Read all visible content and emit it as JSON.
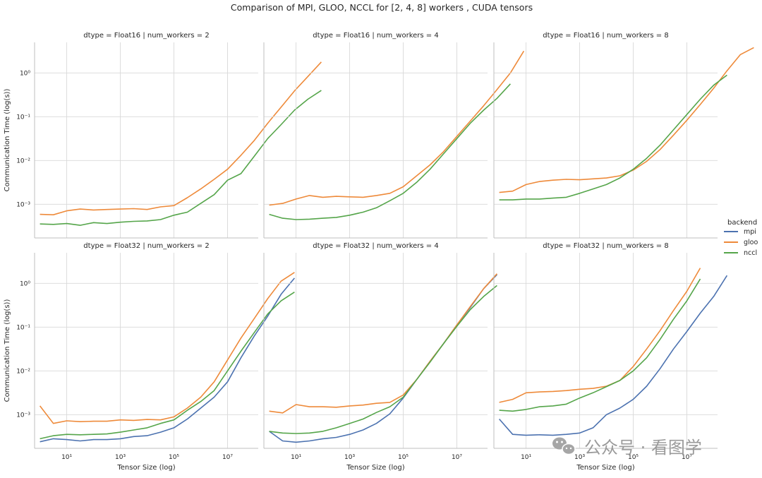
{
  "figure": {
    "title": "Comparison of MPI, GLOO, NCCL for [2, 4, 8] workers , CUDA tensors",
    "xlabel": "Tensor Size (log)",
    "ylabel": "Communication Time (log(s))",
    "legend_title": "backend"
  },
  "watermark": {
    "text": "公众号 · 看图学"
  },
  "backends": [
    {
      "name": "mpi",
      "color": "#4c72b0"
    },
    {
      "name": "gloo",
      "color": "#ee8a3a"
    },
    {
      "name": "nccl",
      "color": "#55a54a"
    }
  ],
  "chart_data": [
    {
      "type": "line",
      "title": "dtype = Float16 | num_workers = 2",
      "xscale": "log",
      "yscale": "log",
      "xlim": [
        0.63,
        140000000.0
      ],
      "ylim": [
        0.00017,
        5
      ],
      "series": [
        {
          "name": "gloo",
          "log10_x_start": 0,
          "log10_x_step": 0.5,
          "log10_y": [
            -3.23,
            -3.24,
            -3.15,
            -3.11,
            -3.13,
            -3.12,
            -3.11,
            -3.1,
            -3.12,
            -3.06,
            -3.03,
            -2.85,
            -2.65,
            -2.43,
            -2.2,
            -1.88,
            -1.54,
            -1.15,
            -0.78,
            -0.41,
            -0.08,
            0.25
          ]
        },
        {
          "name": "nccl",
          "log10_x_start": 0,
          "log10_x_step": 0.5,
          "log10_y": [
            -3.45,
            -3.46,
            -3.44,
            -3.48,
            -3.42,
            -3.44,
            -3.41,
            -3.39,
            -3.38,
            -3.35,
            -3.25,
            -3.18,
            -2.98,
            -2.78,
            -2.45,
            -2.3,
            -1.9,
            -1.5,
            -1.18,
            -0.85,
            -0.6,
            -0.4
          ]
        }
      ]
    },
    {
      "type": "line",
      "title": "dtype = Float16 | num_workers = 4",
      "xscale": "log",
      "yscale": "log",
      "xlim": [
        0.63,
        140000000.0
      ],
      "ylim": [
        0.00017,
        5
      ],
      "series": [
        {
          "name": "gloo",
          "log10_x_start": 0,
          "log10_x_step": 0.5,
          "log10_y": [
            -3.02,
            -2.98,
            -2.88,
            -2.8,
            -2.84,
            -2.82,
            -2.83,
            -2.84,
            -2.8,
            -2.75,
            -2.6,
            -2.35,
            -2.1,
            -1.8,
            -1.45,
            -1.1,
            -0.75,
            -0.38,
            0,
            0.5
          ]
        },
        {
          "name": "nccl",
          "log10_x_start": 0,
          "log10_x_step": 0.5,
          "log10_y": [
            -3.23,
            -3.32,
            -3.35,
            -3.34,
            -3.32,
            -3.3,
            -3.25,
            -3.18,
            -3.08,
            -2.92,
            -2.75,
            -2.5,
            -2.2,
            -1.85,
            -1.5,
            -1.15,
            -0.85,
            -0.58,
            -0.25
          ]
        }
      ]
    },
    {
      "type": "line",
      "title": "dtype = Float16 | num_workers = 8",
      "xscale": "log",
      "yscale": "log",
      "xlim": [
        0.63,
        140000000.0
      ],
      "ylim": [
        0.00017,
        5
      ],
      "series": [
        {
          "name": "gloo",
          "log10_x_start": 0,
          "log10_x_step": 0.5,
          "log10_y": [
            -2.73,
            -2.7,
            -2.55,
            -2.48,
            -2.45,
            -2.43,
            -2.44,
            -2.42,
            -2.4,
            -2.35,
            -2.22,
            -2.02,
            -1.75,
            -1.42,
            -1.08,
            -0.72,
            -0.35,
            0.05,
            0.42,
            0.58
          ]
        },
        {
          "name": "nccl",
          "log10_x_start": 0,
          "log10_x_step": 0.5,
          "log10_y": [
            -2.9,
            -2.9,
            -2.88,
            -2.88,
            -2.86,
            -2.84,
            -2.75,
            -2.65,
            -2.55,
            -2.4,
            -2.2,
            -1.95,
            -1.65,
            -1.3,
            -0.95,
            -0.6,
            -0.28,
            -0.05
          ]
        }
      ]
    },
    {
      "type": "line",
      "title": "dtype = Float32 | num_workers = 2",
      "xscale": "log",
      "yscale": "log",
      "xlim": [
        0.63,
        140000000.0
      ],
      "ylim": [
        0.00017,
        5
      ],
      "series": [
        {
          "name": "mpi",
          "log10_x_start": 0,
          "log10_x_step": 0.5,
          "log10_y": [
            -3.62,
            -3.55,
            -3.57,
            -3.6,
            -3.57,
            -3.57,
            -3.55,
            -3.5,
            -3.48,
            -3.4,
            -3.3,
            -3.1,
            -2.85,
            -2.6,
            -2.25,
            -1.7,
            -1.2,
            -0.75,
            -0.25,
            0.12
          ]
        },
        {
          "name": "gloo",
          "log10_x_start": 0,
          "log10_x_step": 0.5,
          "log10_y": [
            -2.8,
            -3.2,
            -3.14,
            -3.16,
            -3.15,
            -3.15,
            -3.12,
            -3.13,
            -3.11,
            -3.12,
            -3.05,
            -2.85,
            -2.6,
            -2.25,
            -1.75,
            -1.25,
            -0.8,
            -0.35,
            0.05,
            0.25
          ]
        },
        {
          "name": "nccl",
          "log10_x_start": 0,
          "log10_x_step": 0.5,
          "log10_y": [
            -3.55,
            -3.48,
            -3.45,
            -3.46,
            -3.45,
            -3.44,
            -3.4,
            -3.35,
            -3.3,
            -3.2,
            -3.12,
            -2.9,
            -2.7,
            -2.45,
            -2.0,
            -1.55,
            -1.12,
            -0.7,
            -0.4,
            -0.2
          ]
        }
      ]
    },
    {
      "type": "line",
      "title": "dtype = Float32 | num_workers = 4",
      "xscale": "log",
      "yscale": "log",
      "xlim": [
        0.63,
        140000000.0
      ],
      "ylim": [
        0.00017,
        5
      ],
      "series": [
        {
          "name": "mpi",
          "log10_x_start": 0,
          "log10_x_step": 0.5,
          "log10_y": [
            -3.38,
            -3.6,
            -3.63,
            -3.6,
            -3.55,
            -3.52,
            -3.45,
            -3.35,
            -3.2,
            -2.98,
            -2.62,
            -2.2,
            -1.78,
            -1.38,
            -0.95,
            -0.55,
            -0.12,
            0.2
          ]
        },
        {
          "name": "gloo",
          "log10_x_start": 0,
          "log10_x_step": 0.5,
          "log10_y": [
            -2.92,
            -2.96,
            -2.77,
            -2.82,
            -2.82,
            -2.83,
            -2.8,
            -2.78,
            -2.74,
            -2.72,
            -2.55,
            -2.2,
            -1.78,
            -1.38,
            -0.95,
            -0.53,
            -0.12,
            0.22
          ]
        },
        {
          "name": "nccl",
          "log10_x_start": 0,
          "log10_x_step": 0.5,
          "log10_y": [
            -3.38,
            -3.42,
            -3.43,
            -3.42,
            -3.38,
            -3.3,
            -3.2,
            -3.1,
            -2.95,
            -2.82,
            -2.6,
            -2.2,
            -1.8,
            -1.38,
            -0.98,
            -0.6,
            -0.3,
            -0.05
          ]
        }
      ]
    },
    {
      "type": "line",
      "title": "dtype = Float32 | num_workers = 8",
      "xscale": "log",
      "yscale": "log",
      "xlim": [
        0.63,
        140000000.0
      ],
      "ylim": [
        0.00017,
        5
      ],
      "series": [
        {
          "name": "mpi",
          "log10_x_start": 0,
          "log10_x_step": 0.5,
          "log10_y": [
            -3.1,
            -3.45,
            -3.47,
            -3.46,
            -3.47,
            -3.45,
            -3.42,
            -3.3,
            -3.0,
            -2.85,
            -2.65,
            -2.35,
            -1.95,
            -1.5,
            -1.1,
            -0.68,
            -0.3,
            0.18
          ]
        },
        {
          "name": "gloo",
          "log10_x_start": 0,
          "log10_x_step": 0.5,
          "log10_y": [
            -2.72,
            -2.65,
            -2.5,
            -2.48,
            -2.47,
            -2.45,
            -2.42,
            -2.4,
            -2.35,
            -2.22,
            -1.9,
            -1.5,
            -1.08,
            -0.62,
            -0.18,
            0.35
          ]
        },
        {
          "name": "nccl",
          "log10_x_start": 0,
          "log10_x_step": 0.5,
          "log10_y": [
            -2.9,
            -2.92,
            -2.88,
            -2.82,
            -2.8,
            -2.76,
            -2.62,
            -2.5,
            -2.36,
            -2.22,
            -2.0,
            -1.7,
            -1.28,
            -0.82,
            -0.4,
            0.1
          ]
        }
      ]
    }
  ]
}
